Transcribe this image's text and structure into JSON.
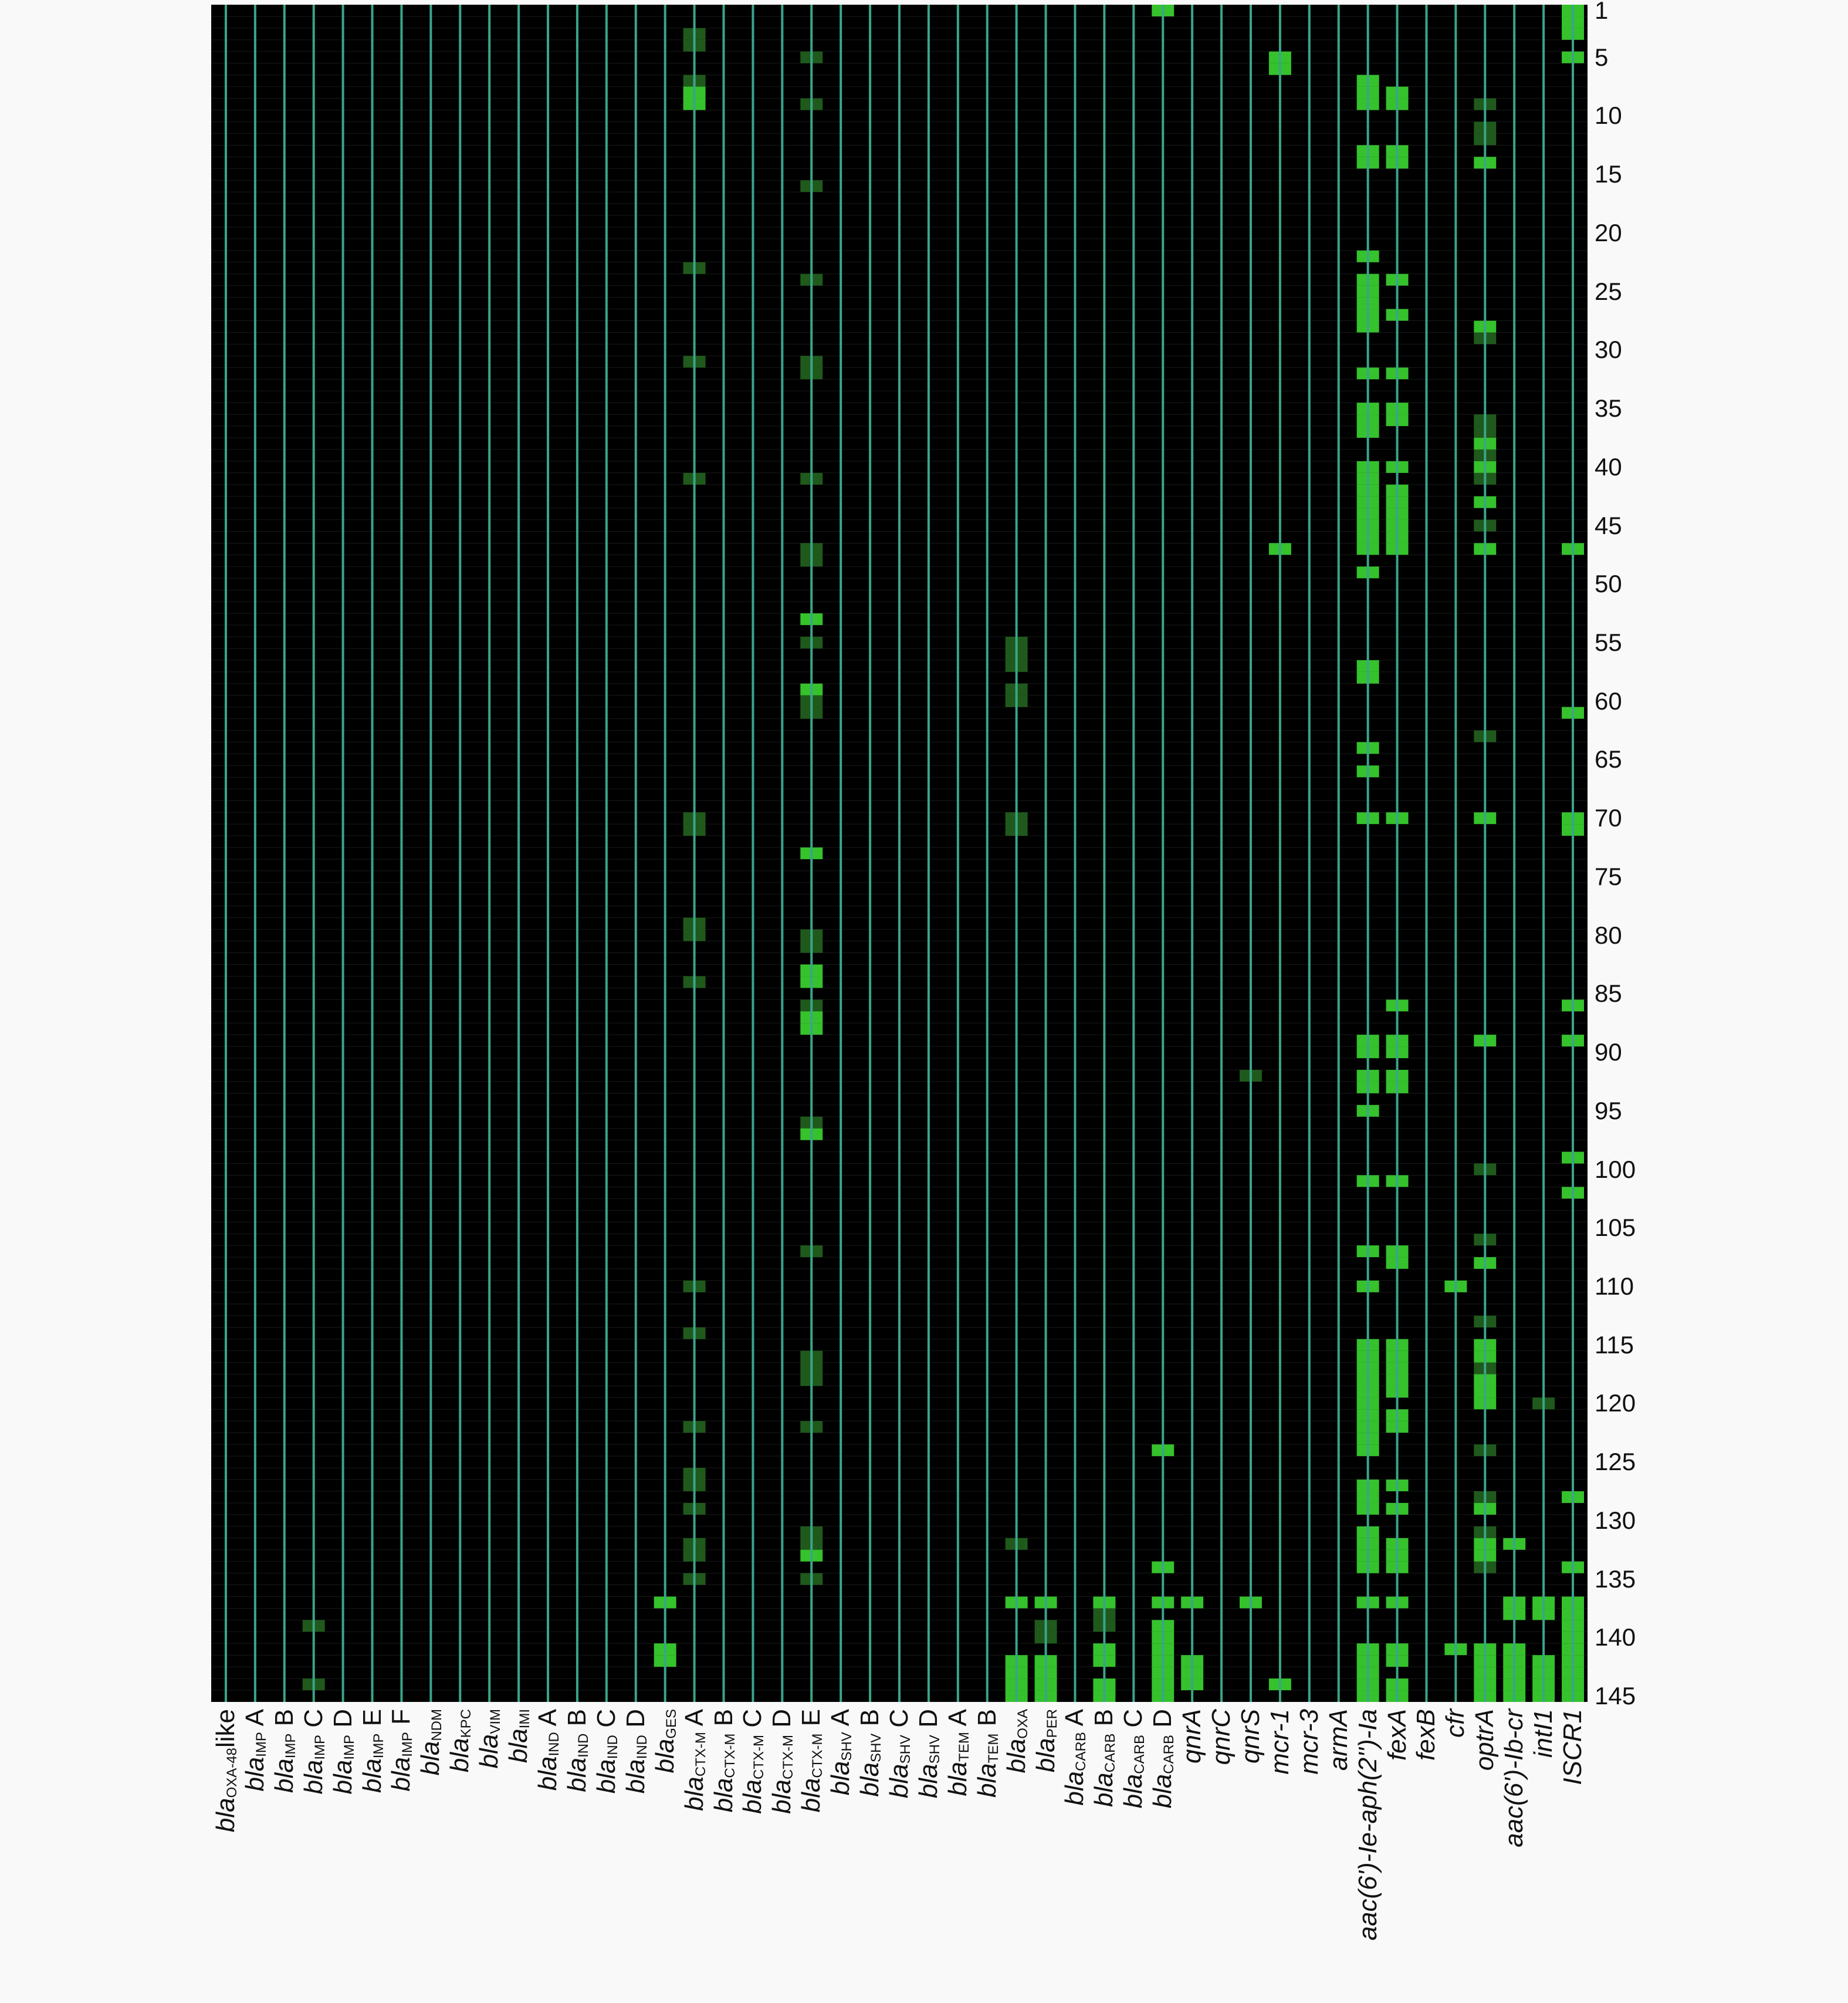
{
  "chart_data": {
    "type": "heatmap",
    "title": "",
    "xlabel": "",
    "ylabel": "",
    "colors": {
      "background": "#000000",
      "grid": "#3aa58a",
      "present": "#35c22c",
      "weak": "#1f5a1c"
    },
    "columns": [
      {
        "base": "bla",
        "sub": "OXA-48",
        "suffix": "like"
      },
      {
        "base": "bla",
        "sub": "IMP",
        "suffix": " A"
      },
      {
        "base": "bla",
        "sub": "IMP",
        "suffix": " B"
      },
      {
        "base": "bla",
        "sub": "IMP",
        "suffix": " C"
      },
      {
        "base": "bla",
        "sub": "IMP",
        "suffix": " D"
      },
      {
        "base": "bla",
        "sub": "IMP",
        "suffix": " E"
      },
      {
        "base": "bla",
        "sub": "IMP",
        "suffix": " F"
      },
      {
        "base": "bla",
        "sub": "NDM",
        "suffix": ""
      },
      {
        "base": "bla",
        "sub": "KPC",
        "suffix": ""
      },
      {
        "base": "bla",
        "sub": "VIM",
        "suffix": ""
      },
      {
        "base": "bla",
        "sub": "IMI",
        "suffix": ""
      },
      {
        "base": "bla",
        "sub": "IND",
        "suffix": " A"
      },
      {
        "base": "bla",
        "sub": "IND",
        "suffix": " B"
      },
      {
        "base": "bla",
        "sub": "IND",
        "suffix": " C"
      },
      {
        "base": "bla",
        "sub": "IND",
        "suffix": " D"
      },
      {
        "base": "bla",
        "sub": "GES",
        "suffix": ""
      },
      {
        "base": "bla",
        "sub": "CTX-M",
        "suffix": " A"
      },
      {
        "base": "bla",
        "sub": "CTX-M",
        "suffix": " B"
      },
      {
        "base": "bla",
        "sub": "CTX-M",
        "suffix": " C"
      },
      {
        "base": "bla",
        "sub": "CTX-M",
        "suffix": " D"
      },
      {
        "base": "bla",
        "sub": "CTX-M",
        "suffix": " E"
      },
      {
        "base": "bla",
        "sub": "SHV",
        "suffix": " A"
      },
      {
        "base": "bla",
        "sub": "SHV",
        "suffix": " B"
      },
      {
        "base": "bla",
        "sub": "SHV",
        "suffix": " C"
      },
      {
        "base": "bla",
        "sub": "SHV",
        "suffix": " D"
      },
      {
        "base": "bla",
        "sub": "TEM",
        "suffix": " A"
      },
      {
        "base": "bla",
        "sub": "TEM",
        "suffix": " B"
      },
      {
        "base": "bla",
        "sub": "OXA",
        "suffix": ""
      },
      {
        "base": "bla",
        "sub": "PER",
        "suffix": ""
      },
      {
        "base": "bla",
        "sub": "CARB",
        "suffix": " A"
      },
      {
        "base": "bla",
        "sub": "CARB",
        "suffix": " B"
      },
      {
        "base": "bla",
        "sub": "CARB",
        "suffix": " C"
      },
      {
        "base": "bla",
        "sub": "CARB",
        "suffix": " D"
      },
      {
        "base": "qnrA",
        "sub": "",
        "suffix": ""
      },
      {
        "base": "qnrC",
        "sub": "",
        "suffix": ""
      },
      {
        "base": "qnrS",
        "sub": "",
        "suffix": ""
      },
      {
        "base": "mcr-1",
        "sub": "",
        "suffix": ""
      },
      {
        "base": "mcr-3",
        "sub": "",
        "suffix": ""
      },
      {
        "base": "armA",
        "sub": "",
        "suffix": ""
      },
      {
        "base": "aac(6')-Ie-aph(2'')-Ia",
        "sub": "",
        "suffix": ""
      },
      {
        "base": "fexA",
        "sub": "",
        "suffix": ""
      },
      {
        "base": "fexB",
        "sub": "",
        "suffix": ""
      },
      {
        "base": "cfr",
        "sub": "",
        "suffix": ""
      },
      {
        "base": "optrA",
        "sub": "",
        "suffix": ""
      },
      {
        "base": "aac(6')-Ib-cr",
        "sub": "",
        "suffix": ""
      },
      {
        "base": "intI1",
        "sub": "",
        "suffix": ""
      },
      {
        "base": "ISCR1",
        "sub": "",
        "suffix": ""
      }
    ],
    "y_ticks": [
      1,
      5,
      10,
      15,
      20,
      25,
      30,
      35,
      40,
      45,
      50,
      55,
      60,
      65,
      70,
      75,
      80,
      85,
      90,
      95,
      100,
      105,
      110,
      115,
      120,
      125,
      130,
      135,
      140,
      145
    ],
    "n_rows": 145,
    "strong_cells": [
      {
        "col": 46,
        "rows": [
          1,
          2,
          3,
          5,
          47,
          61,
          70,
          71,
          86,
          89,
          99,
          102,
          128,
          134,
          137,
          138,
          139,
          140,
          141,
          142,
          143,
          144,
          145
        ]
      },
      {
        "col": 32,
        "rows": [
          1,
          124,
          134,
          137,
          139,
          140,
          141,
          142,
          143,
          144,
          145
        ]
      },
      {
        "col": 36,
        "rows": [
          5,
          6,
          47,
          144
        ]
      },
      {
        "col": 39,
        "rows": [
          7,
          8,
          9,
          13,
          14,
          22,
          24,
          25,
          26,
          27,
          28,
          32,
          35,
          36,
          37,
          40,
          41,
          42,
          43,
          44,
          45,
          46,
          47,
          49,
          57,
          58,
          64,
          66,
          70,
          89,
          90,
          92,
          93,
          95,
          101,
          107,
          110,
          115,
          116,
          117,
          118,
          119,
          120,
          121,
          122,
          123,
          124,
          127,
          128,
          129,
          131,
          132,
          133,
          134,
          137,
          141,
          142,
          143,
          144,
          145
        ]
      },
      {
        "col": 40,
        "rows": [
          8,
          9,
          13,
          14,
          24,
          27,
          32,
          35,
          36,
          40,
          42,
          43,
          44,
          45,
          46,
          47,
          70,
          86,
          89,
          90,
          92,
          93,
          101,
          107,
          108,
          115,
          116,
          117,
          118,
          119,
          121,
          122,
          127,
          129,
          132,
          133,
          134,
          137,
          141,
          142,
          144,
          145
        ]
      },
      {
        "col": 43,
        "rows": [
          14,
          28,
          38,
          40,
          43,
          47,
          70,
          89,
          108,
          115,
          116,
          118,
          119,
          120,
          129,
          132,
          133,
          141,
          142,
          143,
          144,
          145
        ]
      },
      {
        "col": 16,
        "rows": [
          8,
          9
        ]
      },
      {
        "col": 20,
        "rows": [
          53,
          59,
          73,
          83,
          84,
          87,
          88,
          97,
          133
        ]
      },
      {
        "col": 44,
        "rows": [
          132,
          137,
          138,
          141,
          142,
          143,
          144,
          145
        ]
      },
      {
        "col": 45,
        "rows": [
          137,
          138,
          142,
          143,
          144,
          145
        ]
      },
      {
        "col": 15,
        "rows": [
          137,
          141,
          142
        ]
      },
      {
        "col": 27,
        "rows": [
          137,
          142,
          143,
          144,
          145
        ]
      },
      {
        "col": 28,
        "rows": [
          137,
          142,
          143,
          144,
          145
        ]
      },
      {
        "col": 30,
        "rows": [
          137,
          141,
          142,
          144,
          145
        ]
      },
      {
        "col": 33,
        "rows": [
          137,
          142,
          143,
          144
        ]
      },
      {
        "col": 35,
        "rows": [
          137
        ]
      },
      {
        "col": 42,
        "rows": [
          110,
          141
        ]
      }
    ],
    "weak_cells": [
      {
        "col": 16,
        "rows": [
          3,
          4,
          7,
          23,
          31,
          41,
          70,
          71,
          79,
          80,
          84,
          110,
          114,
          122,
          126,
          127,
          129,
          132,
          133,
          135
        ]
      },
      {
        "col": 20,
        "rows": [
          5,
          9,
          16,
          24,
          31,
          32,
          41,
          47,
          48,
          55,
          60,
          61,
          80,
          81,
          86,
          96,
          107,
          116,
          117,
          118,
          122,
          131,
          132,
          135
        ]
      },
      {
        "col": 27,
        "rows": [
          55,
          56,
          57,
          59,
          60,
          70,
          71,
          132
        ]
      },
      {
        "col": 3,
        "rows": [
          139,
          144
        ]
      },
      {
        "col": 43,
        "rows": [
          9,
          11,
          12,
          29,
          36,
          37,
          39,
          41,
          45,
          63,
          100,
          106,
          113,
          117,
          124,
          128,
          131,
          134
        ]
      },
      {
        "col": 28,
        "rows": [
          139,
          140
        ]
      },
      {
        "col": 35,
        "rows": [
          92
        ]
      },
      {
        "col": 45,
        "rows": [
          120
        ]
      },
      {
        "col": 30,
        "rows": [
          138,
          139
        ]
      }
    ]
  }
}
